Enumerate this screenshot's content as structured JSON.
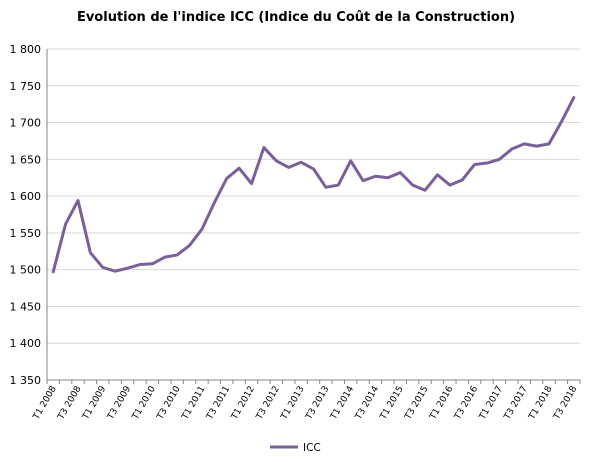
{
  "chart_data": {
    "type": "line",
    "title": "Evolution de l'indice ICC (Indice du Coût de la Construction)",
    "xlabel": "",
    "ylabel": "",
    "ylim": [
      1350,
      1800
    ],
    "y_ticks": [
      "1 350",
      "1 400",
      "1 450",
      "1 500",
      "1 550",
      "1 600",
      "1 650",
      "1 700",
      "1 750",
      "1 800"
    ],
    "y_tick_values": [
      1350,
      1400,
      1450,
      1500,
      1550,
      1600,
      1650,
      1700,
      1750,
      1800
    ],
    "x_tick_labels": [
      "T1 2008",
      "T3 2008",
      "T1 2009",
      "T3 2009",
      "T1 2010",
      "T3 2010",
      "T1 2011",
      "T3 2011",
      "T1 2012",
      "T3 2012",
      "T1 2013",
      "T3 2013",
      "T1 2014",
      "T3 2014",
      "T1 2015",
      "T3 2015",
      "T1 2016",
      "T3 2016",
      "T1 2017",
      "T3 2017",
      "T1 2018",
      "T3 2018"
    ],
    "x": [
      "T1 2008",
      "T2 2008",
      "T3 2008",
      "T4 2008",
      "T1 2009",
      "T2 2009",
      "T3 2009",
      "T4 2009",
      "T1 2010",
      "T2 2010",
      "T3 2010",
      "T4 2010",
      "T1 2011",
      "T2 2011",
      "T3 2011",
      "T4 2011",
      "T1 2012",
      "T2 2012",
      "T3 2012",
      "T4 2012",
      "T1 2013",
      "T2 2013",
      "T3 2013",
      "T4 2013",
      "T1 2014",
      "T2 2014",
      "T3 2014",
      "T4 2014",
      "T1 2015",
      "T2 2015",
      "T3 2015",
      "T4 2015",
      "T1 2016",
      "T2 2016",
      "T3 2016",
      "T4 2016",
      "T1 2017",
      "T2 2017",
      "T3 2017",
      "T4 2017",
      "T1 2018",
      "T2 2018",
      "T3 2018"
    ],
    "series": [
      {
        "name": "ICC",
        "color": "#7b5e9c",
        "values": [
          1497,
          1562,
          1594,
          1523,
          1503,
          1498,
          1502,
          1507,
          1508,
          1517,
          1520,
          1533,
          1555,
          1591,
          1624,
          1638,
          1617,
          1666,
          1648,
          1639,
          1646,
          1637,
          1612,
          1615,
          1648,
          1621,
          1627,
          1625,
          1632,
          1615,
          1608,
          1629,
          1615,
          1622,
          1643,
          1645,
          1650,
          1664,
          1671,
          1668,
          1671,
          1701,
          1734
        ]
      }
    ],
    "grid": true,
    "legend": "bottom"
  }
}
